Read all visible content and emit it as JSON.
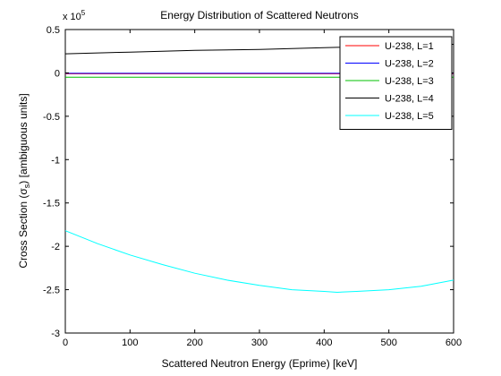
{
  "chart_data": {
    "type": "line",
    "title": "Energy Distribution of Scattered Neutrons",
    "xlabel": "Scattered Neutron Energy (Eprime) [keV]",
    "ylabel": {
      "prefix": "Cross Section (",
      "sigma": "σ",
      "sub": "s",
      "suffix": ") [ambiguous units]"
    },
    "xlim": [
      0,
      600
    ],
    "ylim": [
      -3,
      0.5
    ],
    "y_multiplier": {
      "base": "x 10",
      "exponent": "5"
    },
    "x_ticks": [
      "0",
      "100",
      "200",
      "300",
      "400",
      "500",
      "600"
    ],
    "y_ticks": [
      "-3",
      "-2.5",
      "-2",
      "-1.5",
      "-1",
      "-0.5",
      "0",
      "0.5"
    ],
    "grid": false,
    "legend_position": "top-right",
    "series": [
      {
        "name": "U-238, L=1",
        "color": "#ff0000",
        "x": [
          0,
          100,
          200,
          300,
          400,
          500,
          600
        ],
        "y": [
          -0.01,
          -0.01,
          -0.01,
          -0.01,
          -0.01,
          -0.01,
          -0.01
        ]
      },
      {
        "name": "U-238, L=2",
        "color": "#0000ff",
        "x": [
          0,
          100,
          200,
          300,
          400,
          500,
          600
        ],
        "y": [
          -0.005,
          -0.005,
          -0.005,
          -0.005,
          -0.005,
          -0.005,
          -0.005
        ]
      },
      {
        "name": "U-238, L=3",
        "color": "#00c000",
        "x": [
          0,
          100,
          200,
          300,
          400,
          500,
          600
        ],
        "y": [
          -0.05,
          -0.05,
          -0.05,
          -0.05,
          -0.05,
          -0.05,
          -0.05
        ]
      },
      {
        "name": "U-238, L=4",
        "color": "#000000",
        "x": [
          0,
          100,
          200,
          300,
          400,
          500,
          600
        ],
        "y": [
          0.22,
          0.24,
          0.26,
          0.27,
          0.29,
          0.31,
          0.33
        ]
      },
      {
        "name": "U-238, L=5",
        "color": "#00ffff",
        "x": [
          0,
          50,
          100,
          150,
          200,
          250,
          300,
          350,
          400,
          420,
          450,
          500,
          550,
          600
        ],
        "y": [
          -1.82,
          -1.97,
          -2.1,
          -2.21,
          -2.31,
          -2.39,
          -2.45,
          -2.5,
          -2.52,
          -2.53,
          -2.52,
          -2.5,
          -2.46,
          -2.39
        ]
      }
    ]
  }
}
